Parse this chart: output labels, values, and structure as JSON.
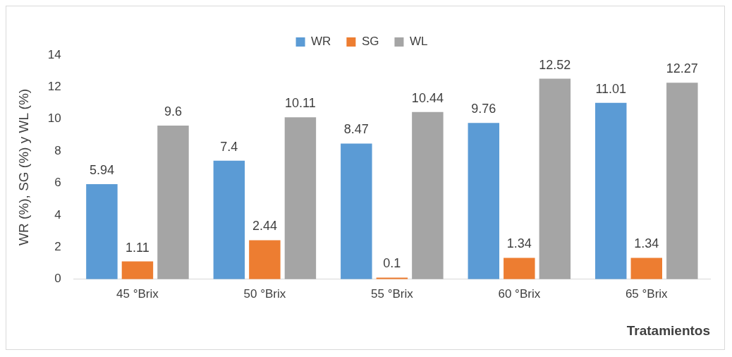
{
  "chart_data": {
    "type": "bar",
    "categories": [
      "45 °Brix",
      "50 °Brix",
      "55 °Brix",
      "60 °Brix",
      "65 °Brix"
    ],
    "series": [
      {
        "name": "WR",
        "color": "#5b9bd5",
        "values": [
          5.94,
          7.4,
          8.47,
          9.76,
          11.01
        ]
      },
      {
        "name": "SG",
        "color": "#ed7d31",
        "values": [
          1.11,
          2.44,
          0.1,
          1.34,
          1.34
        ]
      },
      {
        "name": "WL",
        "color": "#a5a5a5",
        "values": [
          9.6,
          10.11,
          10.44,
          12.52,
          12.27
        ]
      }
    ],
    "ylim": [
      0,
      14
    ],
    "yticks": [
      0,
      2,
      4,
      6,
      8,
      10,
      12,
      14
    ],
    "ylabel": "WR (%), SG (%) y WL (%)",
    "xlabel": "Tratamientos",
    "legend": "top",
    "grid": false,
    "data_labels": true
  }
}
